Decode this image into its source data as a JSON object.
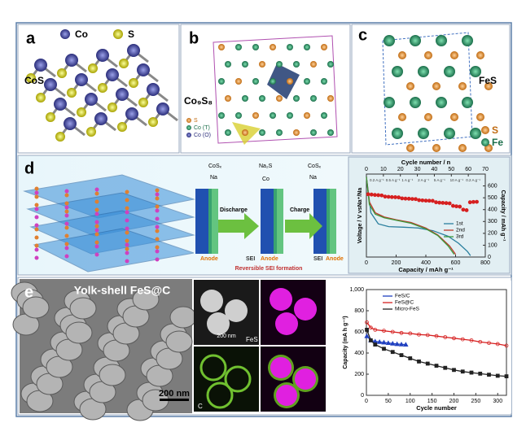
{
  "panel_a": {
    "label": "a",
    "legend": [
      "Co",
      "S"
    ],
    "compound": "CoS"
  },
  "panel_b": {
    "label": "b",
    "compound": "Co₉S₈",
    "legend": [
      "S",
      "Co (T)",
      "Co (O)"
    ]
  },
  "panel_c": {
    "label": "c",
    "compound": "FeS",
    "legend": [
      "S",
      "Fe"
    ]
  },
  "panel_d": {
    "label": "d",
    "species": [
      "CoSₓ",
      "Na",
      "Na₂S",
      "Co",
      "CoSₓ",
      "Na"
    ],
    "steps": [
      "Discharge",
      "Charge"
    ],
    "electrode": [
      "Anode",
      "SEI",
      "Anode",
      "SEI",
      "Anode"
    ],
    "caption": "Reversible SEI formation",
    "chart": {
      "type": "line",
      "x_label": "Capacity / mAh g⁻¹",
      "x2_label": "Cycle number / n",
      "y_label": "Voltage / V vsNa⁺/Na",
      "y2_label": "Capacity / mAh g⁻¹",
      "xlim": [
        0,
        800
      ],
      "xticks": [
        0,
        200,
        400,
        600,
        800
      ],
      "x2lim": [
        0,
        70
      ],
      "x2ticks": [
        0,
        10,
        20,
        30,
        40,
        50,
        60,
        70
      ],
      "ylim": [
        0,
        3
      ],
      "y2lim": [
        0,
        700
      ],
      "y2ticks": [
        0,
        100,
        200,
        300,
        400,
        500,
        600
      ],
      "rate_labels": [
        "0.2 A g⁻¹",
        "0.5 A g⁻¹",
        "1 A g⁻¹",
        "2 A g⁻¹",
        "5 A g⁻¹",
        "10 A g⁻¹",
        "0.2 A g⁻¹"
      ],
      "series": [
        {
          "name": "1st",
          "color": "#2a7f9e",
          "x": [
            0,
            30,
            80,
            150,
            250,
            350,
            450,
            550,
            620,
            680,
            700
          ],
          "values": [
            2.9,
            1.6,
            1.2,
            1.1,
            1.08,
            1.05,
            0.95,
            0.75,
            0.5,
            0.2,
            0.05
          ]
        },
        {
          "name": "2nd",
          "color": "#c0392b",
          "x": [
            0,
            20,
            60,
            120,
            200,
            300,
            400,
            480,
            560,
            600
          ],
          "values": [
            2.9,
            2.0,
            1.6,
            1.45,
            1.35,
            1.25,
            1.05,
            0.8,
            0.4,
            0.1
          ]
        },
        {
          "name": "3rd",
          "color": "#3c9a3c",
          "x": [
            0,
            20,
            60,
            120,
            200,
            300,
            400,
            480,
            550,
            590
          ],
          "values": [
            2.9,
            1.9,
            1.55,
            1.42,
            1.33,
            1.22,
            1.02,
            0.78,
            0.4,
            0.1
          ]
        },
        {
          "color": "#d62020",
          "marker": "circle",
          "axis": "y2",
          "xaxis": "x2",
          "x": [
            1,
            3,
            5,
            7,
            9,
            11,
            13,
            15,
            17,
            19,
            21,
            23,
            25,
            27,
            29,
            31,
            33,
            35,
            37,
            39,
            41,
            43,
            45,
            47,
            49,
            51,
            53,
            55,
            57,
            59,
            61,
            63,
            65
          ],
          "values": [
            530,
            527,
            524,
            522,
            520,
            510,
            508,
            506,
            505,
            503,
            495,
            493,
            492,
            490,
            489,
            480,
            478,
            476,
            475,
            474,
            462,
            459,
            457,
            455,
            453,
            432,
            428,
            425,
            400,
            395,
            462,
            465,
            466
          ]
        }
      ]
    }
  },
  "panel_e": {
    "label": "e",
    "sem_title": "Yolk-shell FeS@C",
    "scale_bars": [
      "200 nm",
      "200 nm"
    ],
    "map_labels": [
      "FeS",
      "C"
    ],
    "chart": {
      "type": "scatter",
      "x_label": "Cycle number",
      "y_label": "Capacity (mA h g⁻¹)",
      "xlim": [
        0,
        320
      ],
      "xticks": [
        0,
        50,
        100,
        150,
        200,
        250,
        300
      ],
      "ylim": [
        0,
        1000
      ],
      "yticks": [
        0,
        200,
        400,
        600,
        800,
        {
          "value": 1000,
          "label": "1,000"
        }
      ],
      "series": [
        {
          "name": "FeS/C",
          "color": "#2040c0",
          "marker": "triangle",
          "x": [
            1,
            10,
            20,
            30,
            40,
            50,
            60,
            70,
            80,
            90
          ],
          "values": [
            560,
            520,
            510,
            505,
            500,
            495,
            490,
            485,
            482,
            480
          ]
        },
        {
          "name": "FeS@C",
          "color": "#d62020",
          "marker": "circle",
          "x": [
            1,
            10,
            20,
            40,
            60,
            80,
            100,
            120,
            140,
            160,
            180,
            200,
            220,
            240,
            260,
            280,
            300,
            320
          ],
          "values": [
            690,
            640,
            620,
            610,
            600,
            590,
            585,
            575,
            570,
            560,
            550,
            540,
            530,
            520,
            505,
            495,
            485,
            470
          ]
        },
        {
          "name": "Micro-FeS",
          "color": "#222222",
          "marker": "square",
          "x": [
            1,
            10,
            20,
            40,
            60,
            80,
            100,
            120,
            140,
            160,
            180,
            200,
            220,
            240,
            260,
            280,
            300,
            320
          ],
          "values": [
            620,
            520,
            480,
            440,
            410,
            380,
            350,
            320,
            300,
            280,
            260,
            240,
            225,
            215,
            205,
            195,
            185,
            180
          ]
        }
      ]
    }
  }
}
